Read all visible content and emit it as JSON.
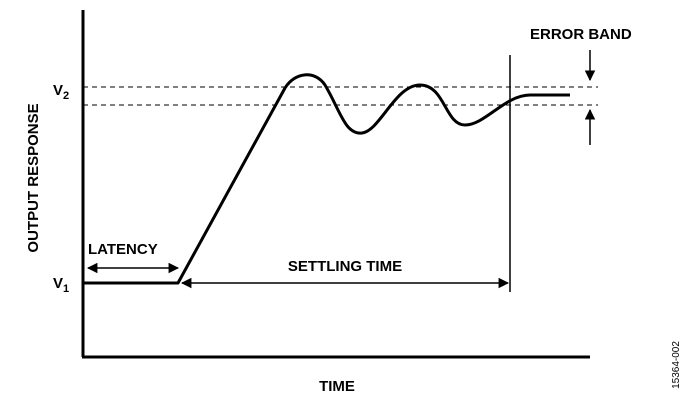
{
  "labels": {
    "error_band": "ERROR BAND",
    "v2": {
      "letter": "V",
      "sub": "2"
    },
    "v1": {
      "letter": "V",
      "sub": "1"
    },
    "y_axis": "OUTPUT RESPONSE",
    "latency": "LATENCY",
    "settling_time": "SETTLING TIME",
    "x_axis": "TIME",
    "figure_id": "15364-002"
  }
}
